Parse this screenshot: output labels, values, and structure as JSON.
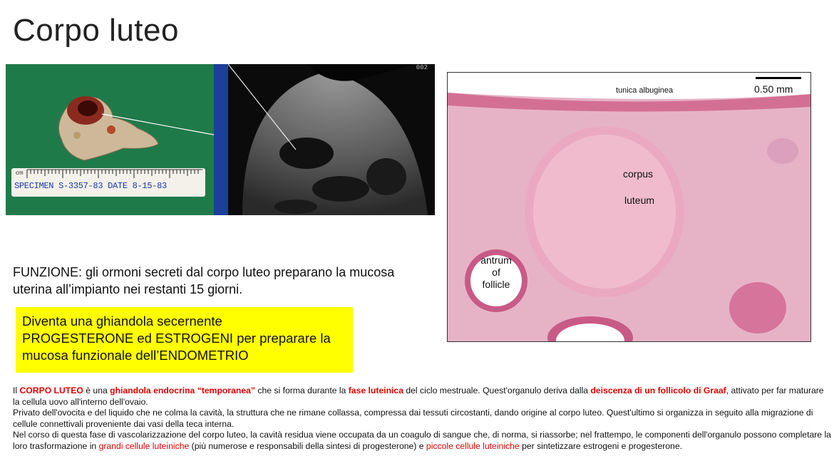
{
  "title": "Corpo luteo",
  "specimen": {
    "ruler_text": "SPECIMEN S-3357-83  DATE 8-15-83",
    "ruler_unit": "cm",
    "ruler_numbers": [
      "1",
      "2",
      "3",
      "4",
      "5",
      "6"
    ]
  },
  "ultrasound": {
    "corner_label": "002"
  },
  "histology": {
    "scale_label": "0.50 mm",
    "labels": {
      "tunica": "tunica albuginea",
      "corpus": "corpus",
      "luteum": "luteum",
      "antrum": "antrum",
      "of": "of",
      "follicle": "follicle"
    }
  },
  "function_text": "FUNZIONE: gli ormoni secreti dal corpo luteo preparano la mucosa uterina all’impianto nei restanti 15 giorni.",
  "highlight_box": {
    "line1": "Diventa una ghiandola secernente",
    "line2": "PROGESTERONE ed ESTROGENI per preparare la",
    "line3": "mucosa funzionale dell’ENDOMETRIO"
  },
  "paragraph": {
    "p1": [
      {
        "t": "Il ",
        "s": ""
      },
      {
        "t": "CORPO LUTEO",
        "s": "rb"
      },
      {
        "t": " è una ",
        "s": ""
      },
      {
        "t": "ghiandola endocrina “temporanea”",
        "s": "rb"
      },
      {
        "t": " che si forma durante la ",
        "s": ""
      },
      {
        "t": "fase luteinica",
        "s": "rb"
      },
      {
        "t": " del ciclo mestruale. Quest'organulo deriva dalla ",
        "s": ""
      },
      {
        "t": "deiscenza di un follicolo di Graaf",
        "s": "rb"
      },
      {
        "t": ", attivato per far maturare la cellula uovo all'interno dell'ovaio.",
        "s": ""
      }
    ],
    "p2": "Privato dell'ovocita e del liquido che ne colma la cavità, la struttura che ne rimane collassa, compressa dai tessuti circostanti, dando origine al corpo luteo. Quest'ultimo si organizza in seguito alla migrazione di cellule connettivali proveniente dai vasi della teca interna.",
    "p3": [
      {
        "t": " Nel corso di questa fase di vascolarizzazione del corpo luteo, la cavità residua viene occupata da un coagulo di sangue che, di norma, si riassorbe; nel frattempo, le componenti dell'organulo possono completare la loro trasformazione in ",
        "s": ""
      },
      {
        "t": "grandi cellule luteiniche",
        "s": "r"
      },
      {
        "t": " (più numerose e responsabili della sintesi di progesterone) e ",
        "s": ""
      },
      {
        "t": "piccole cellule luteiniche",
        "s": "r"
      },
      {
        "t": " per sintetizzare estrogeni e progesterone.",
        "s": ""
      }
    ]
  }
}
